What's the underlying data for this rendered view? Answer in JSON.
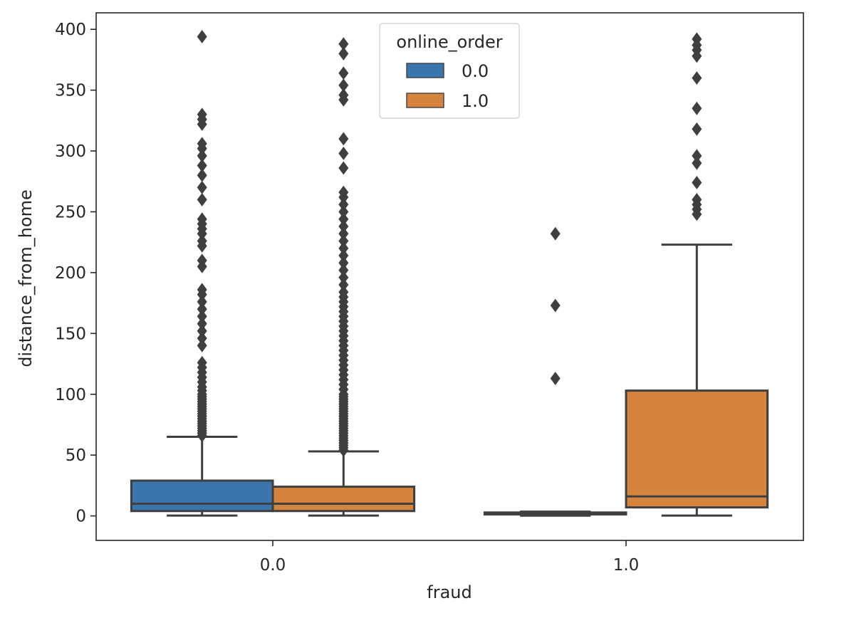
{
  "chart_data": {
    "type": "box",
    "xlabel": "fraud",
    "ylabel": "distance_from_home",
    "categories": [
      "0.0",
      "1.0"
    ],
    "ylim": [
      -20,
      410
    ],
    "yticks": [
      0,
      50,
      100,
      150,
      200,
      250,
      300,
      350,
      400
    ],
    "legend": {
      "title": "online_order",
      "placement": "top-center",
      "entries": [
        "0.0",
        "1.0"
      ]
    },
    "colors": {
      "0.0": "#3a75ae",
      "1.0": "#d6843d",
      "line": "#3f3f3f"
    },
    "boxes": [
      {
        "category": "0.0",
        "hue": "0.0",
        "whisker_low": 0.3,
        "q1": 4,
        "median": 10,
        "q3": 29,
        "whisker_high": 65,
        "outliers": [
          66,
          68,
          70,
          72,
          74,
          76,
          78,
          80,
          82,
          84,
          86,
          88,
          90,
          92,
          94,
          96,
          98,
          100,
          103,
          106,
          110,
          114,
          118,
          122,
          126,
          140,
          146,
          152,
          158,
          164,
          170,
          176,
          182,
          186,
          205,
          210,
          222,
          226,
          232,
          236,
          240,
          244,
          260,
          270,
          280,
          288,
          296,
          302,
          306,
          322,
          326,
          330,
          394
        ]
      },
      {
        "category": "0.0",
        "hue": "1.0",
        "whisker_low": 0.3,
        "q1": 4,
        "median": 10,
        "q3": 24,
        "whisker_high": 53,
        "outliers": [
          54,
          56,
          58,
          60,
          62,
          64,
          66,
          68,
          70,
          72,
          74,
          76,
          78,
          80,
          82,
          84,
          86,
          88,
          90,
          92,
          94,
          96,
          98,
          100,
          104,
          108,
          112,
          116,
          120,
          124,
          128,
          132,
          136,
          140,
          144,
          148,
          152,
          156,
          160,
          164,
          168,
          172,
          176,
          180,
          184,
          190,
          196,
          202,
          208,
          214,
          220,
          226,
          232,
          238,
          244,
          250,
          256,
          262,
          266,
          286,
          298,
          310,
          342,
          346,
          354,
          364,
          380,
          388
        ]
      },
      {
        "category": "1.0",
        "hue": "0.0",
        "whisker_low": 0.2,
        "q1": 1.2,
        "median": 1.8,
        "q3": 2.8,
        "whisker_high": 3.5,
        "outliers": [
          113,
          173,
          232
        ]
      },
      {
        "category": "1.0",
        "hue": "1.0",
        "whisker_low": 0.3,
        "q1": 7,
        "median": 16,
        "q3": 103,
        "whisker_high": 223,
        "outliers": [
          248,
          252,
          256,
          260,
          274,
          290,
          296,
          318,
          335,
          360,
          378,
          383,
          387,
          392
        ]
      }
    ]
  }
}
